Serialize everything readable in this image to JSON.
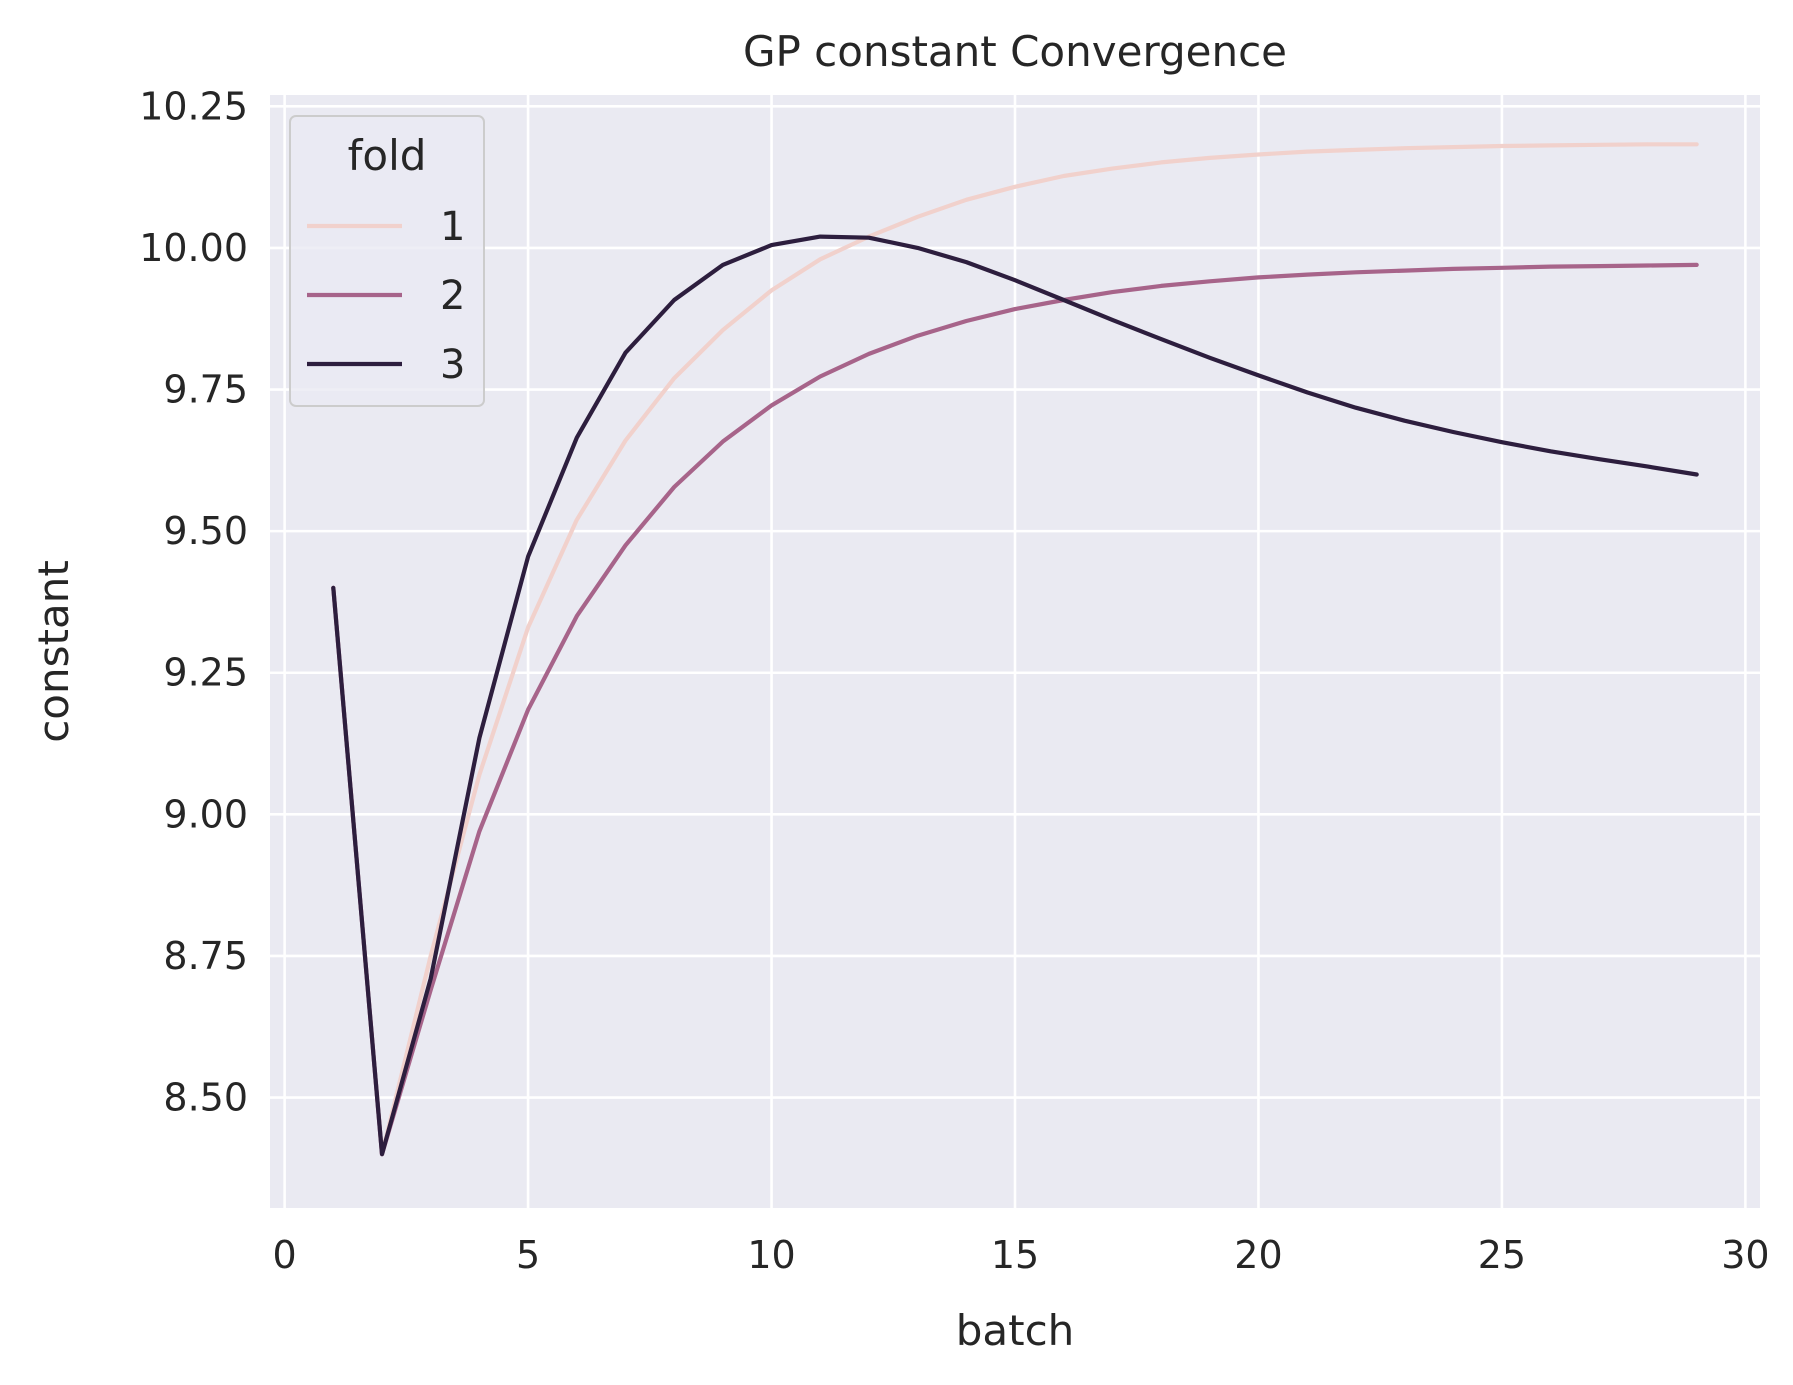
{
  "chart_data": {
    "type": "line",
    "title": "GP constant Convergence",
    "xlabel": "batch",
    "ylabel": "constant",
    "xlim": [
      -0.3,
      30.3
    ],
    "ylim": [
      8.305,
      10.27
    ],
    "xticks": [
      0,
      5,
      10,
      15,
      20,
      25,
      30
    ],
    "xtick_labels": [
      "0",
      "5",
      "10",
      "15",
      "20",
      "25",
      "30"
    ],
    "yticks": [
      8.5,
      8.75,
      9.0,
      9.25,
      9.5,
      9.75,
      10.0,
      10.25
    ],
    "ytick_labels": [
      "8.50",
      "8.75",
      "9.00",
      "9.25",
      "9.50",
      "9.75",
      "10.00",
      "10.25"
    ],
    "grid": true,
    "plot_background": "#eaeaf2",
    "grid_color": "#ffffff",
    "legend": {
      "title": "fold",
      "placement": "upper-left",
      "labels": [
        "1",
        "2",
        "3"
      ]
    },
    "x": [
      1,
      2,
      3,
      4,
      5,
      6,
      7,
      8,
      9,
      10,
      11,
      12,
      13,
      14,
      15,
      16,
      17,
      18,
      19,
      20,
      21,
      22,
      23,
      24,
      25,
      26,
      27,
      28,
      29
    ],
    "series": [
      {
        "name": "1",
        "color": "#f1d1cc",
        "values": [
          9.4,
          8.4,
          8.75,
          9.07,
          9.33,
          9.52,
          9.66,
          9.77,
          9.855,
          9.925,
          9.98,
          10.02,
          10.055,
          10.085,
          10.108,
          10.127,
          10.14,
          10.151,
          10.159,
          10.165,
          10.17,
          10.173,
          10.176,
          10.178,
          10.18,
          10.181,
          10.182,
          10.183,
          10.183
        ]
      },
      {
        "name": "2",
        "color": "#a7648a",
        "values": [
          9.4,
          8.4,
          8.69,
          8.97,
          9.185,
          9.35,
          9.475,
          9.578,
          9.658,
          9.722,
          9.773,
          9.813,
          9.845,
          9.871,
          9.892,
          9.908,
          9.922,
          9.933,
          9.941,
          9.948,
          9.953,
          9.957,
          9.96,
          9.963,
          9.965,
          9.967,
          9.968,
          9.969,
          9.97
        ]
      },
      {
        "name": "3",
        "color": "#2d1e3e",
        "values": [
          9.4,
          8.4,
          8.71,
          9.135,
          9.455,
          9.665,
          9.815,
          9.908,
          9.97,
          10.005,
          10.02,
          10.018,
          10.0,
          9.975,
          9.943,
          9.908,
          9.873,
          9.839,
          9.806,
          9.775,
          9.745,
          9.718,
          9.695,
          9.675,
          9.657,
          9.641,
          9.627,
          9.614,
          9.6
        ]
      }
    ]
  }
}
